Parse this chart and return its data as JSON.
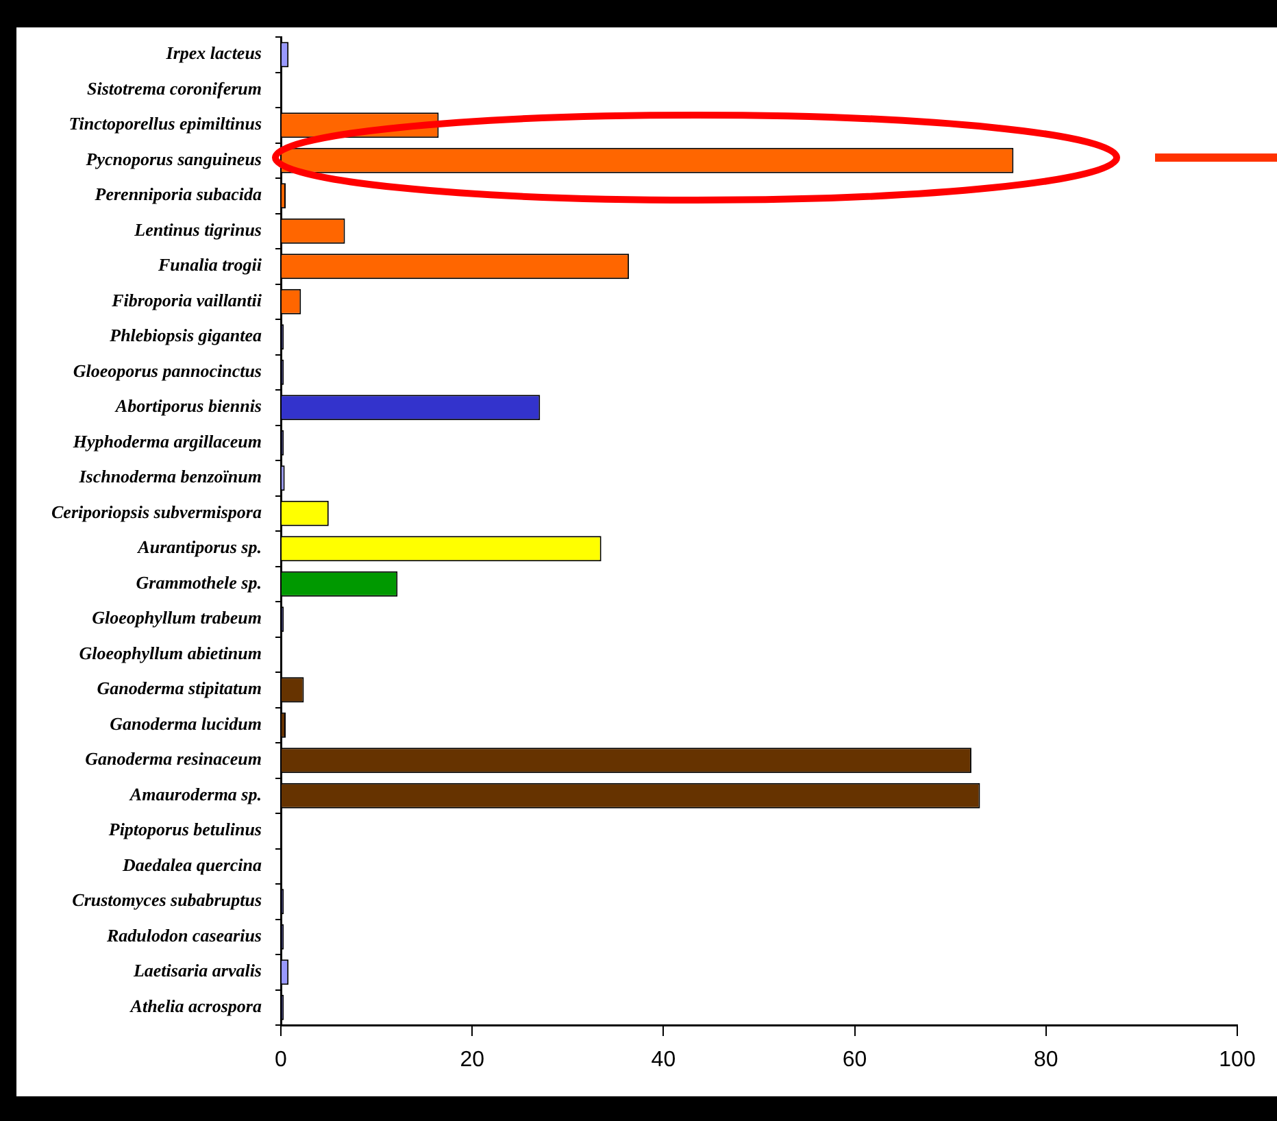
{
  "chart_data": {
    "type": "bar",
    "orientation": "horizontal",
    "categories": [
      "Irpex lacteus",
      "Sistotrema coroniferum",
      "Tinctoporellus epimiltinus",
      "Pycnoporus sanguineus",
      "Perenniporia subacida",
      "Lentinus tigrinus",
      "Funalia trogii",
      "Fibroporia vaillantii",
      "Phlebiopsis gigantea",
      "Gloeoporus pannocinctus",
      "Abortiporus biennis",
      "Hyphoderma argillaceum",
      "Ischnoderma benzoïnum",
      "Ceriporiopsis subvermispora",
      "Aurantiporus sp.",
      "Grammothele sp.",
      "Gloeophyllum trabeum",
      "Gloeophyllum abietinum",
      "Ganoderma stipitatum",
      "Ganoderma lucidum",
      "Ganoderma resinaceum",
      "Amauroderma sp.",
      "Piptoporus betulinus",
      "Daedalea quercina",
      "Crustomyces subabruptus",
      "Radulodon casearius",
      "Laetisaria arvalis",
      "Athelia acrospora"
    ],
    "values": [
      0.8,
      0,
      16.5,
      76.6,
      0.5,
      6.7,
      36.4,
      2.1,
      0.3,
      0.3,
      27.1,
      0.3,
      0.4,
      5.0,
      33.5,
      12.2,
      0.3,
      0,
      2.4,
      0.5,
      72.2,
      73.1,
      0,
      0,
      0.3,
      0.3,
      0.8,
      0.3
    ],
    "colors": [
      "#9999ff",
      "#9999ff",
      "#ff6600",
      "#ff6600",
      "#ff6600",
      "#ff6600",
      "#ff6600",
      "#ff6600",
      "#1a1a4d",
      "#1a1a4d",
      "#3333cc",
      "#1a1a4d",
      "#9999ff",
      "#ffff00",
      "#ffff00",
      "#009900",
      "#1a1a4d",
      "#1a1a4d",
      "#663300",
      "#663300",
      "#663300",
      "#663300",
      "#1a1a4d",
      "#1a1a4d",
      "#1a1a4d",
      "#1a1a4d",
      "#9999ff",
      "#1a1a4d"
    ],
    "xlim": [
      0,
      100
    ],
    "xticks": [
      0,
      20,
      40,
      60,
      80,
      100
    ],
    "grid": false,
    "legend": false
  }
}
